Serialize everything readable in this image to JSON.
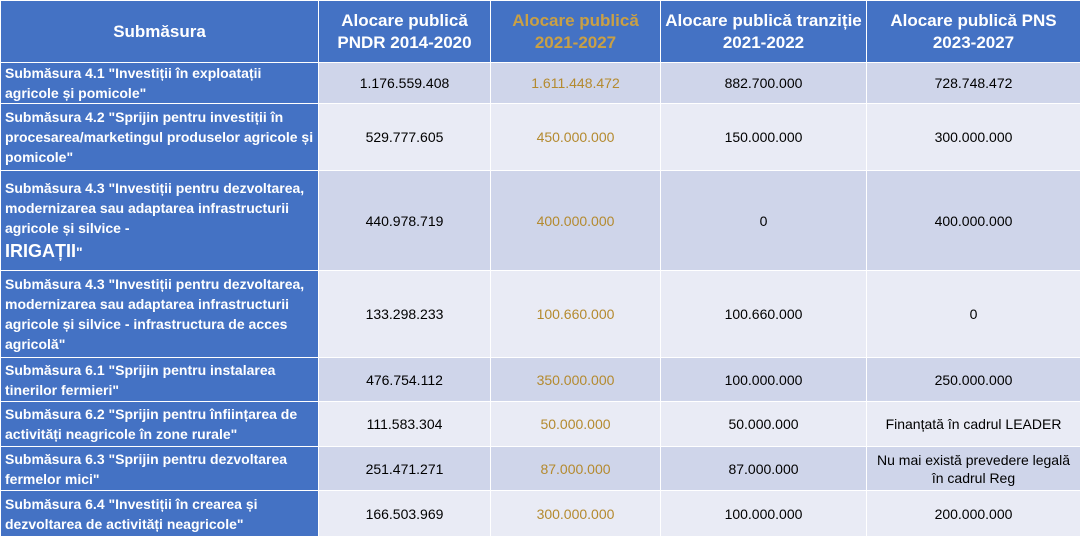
{
  "headers": [
    "Submăsura",
    "Alocare publică PNDR 2014-2020",
    "Alocare publică 2021-2027",
    "Alocare publică tranziție 2021-2022",
    "Alocare publică PNS 2023-2027"
  ],
  "rows": [
    {
      "name": "Submăsura 4.1 \"Investiții în exploatații agricole și pomicole\"",
      "pndr": "1.176.559.408",
      "alloc2127": "1.611.448.472",
      "tranzitie": "882.700.000",
      "pns": "728.748.472"
    },
    {
      "name": "Submăsura 4.2 \"Sprijin pentru investiții în procesarea/marketingul produselor agricole și pomicole\"",
      "pndr": "529.777.605",
      "alloc2127": "450.000.000",
      "tranzitie": "150.000.000",
      "pns": "300.000.000"
    },
    {
      "name_line1": "Submăsura 4.3 \"Investiții  pentru dezvoltarea, modernizarea sau adaptarea infrastructurii agricole și silvice -",
      "name_line2": "IRIGAȚII",
      "name_line3": "\"",
      "pndr": "440.978.719",
      "alloc2127": "400.000.000",
      "tranzitie": "0",
      "pns": "400.000.000"
    },
    {
      "name": "Submăsura 4.3 \"Investiții  pentru dezvoltarea, modernizarea sau adaptarea infrastructurii agricole și silvice - infrastructura de acces agricolă\"",
      "pndr": "133.298.233",
      "alloc2127": "100.660.000",
      "tranzitie": "100.660.000",
      "pns": "0"
    },
    {
      "name": "Submăsura 6.1 \"Sprijin pentru instalarea tinerilor fermieri\"",
      "pndr": "476.754.112",
      "alloc2127": "350.000.000",
      "tranzitie": "100.000.000",
      "pns": "250.000.000"
    },
    {
      "name": "Submăsura 6.2 \"Sprijin pentru înființarea de activități neagricole în zone rurale\"",
      "pndr": "111.583.304",
      "alloc2127": "50.000.000",
      "tranzitie": "50.000.000",
      "pns": "Finanțată în cadrul LEADER"
    },
    {
      "name": "Submăsura 6.3 \"Sprijin pentru dezvoltarea fermelor mici\"",
      "pndr": "251.471.271",
      "alloc2127": "87.000.000",
      "tranzitie": "87.000.000",
      "pns": "Nu mai există prevedere legală în cadrul Reg"
    },
    {
      "name": "Submăsura 6.4 \"Investiții în crearea și dezvoltarea de activități neagricole\"",
      "pndr": "166.503.969",
      "alloc2127": "300.000.000",
      "tranzitie": "100.000.000",
      "pns": "200.000.000"
    }
  ],
  "colors": {
    "header_bg": "#4472c4",
    "highlight_text": "#b48a2f",
    "row_even_bg": "#cfd5ea",
    "row_odd_bg": "#e9ebf5"
  }
}
